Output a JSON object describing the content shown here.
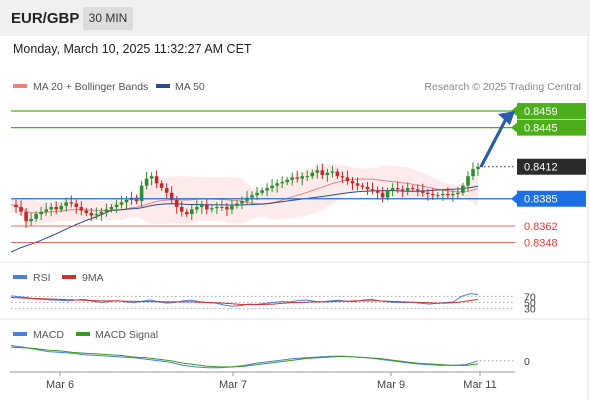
{
  "header": {
    "symbol": "EUR/GBP",
    "timeframe": "30 MIN",
    "datetime": "Monday, March 10, 2025 11:32:27 AM CET"
  },
  "colors": {
    "ma20": "#f08080",
    "ma50": "#2a4b8d",
    "resistance": "#4caf1a",
    "support": "#e53935",
    "pivot": "#1e6fe6",
    "candle_up": "#2e8b2e",
    "candle_down": "#c62828",
    "rsi": "#4a7fdc",
    "rsi_ma": "#d32f2f",
    "macd": "#4a7fdc",
    "macd_signal": "#3a9a1a",
    "arrow": "#2a5caa"
  },
  "chart_data": [
    {
      "type": "candlestick",
      "legend": [
        {
          "label": "MA 20 + Bollinger Bands",
          "color": "#f08080"
        },
        {
          "label": "MA 50",
          "color": "#2a4b8d"
        }
      ],
      "watermark": "Research © 2025 Trading Central",
      "x_ticks": [
        "Mar 6",
        "Mar 7",
        "Mar 9",
        "Mar 11"
      ],
      "current_price": "0.8412",
      "levels": [
        {
          "label": "0.8459",
          "value": 0.8459,
          "kind": "resistance"
        },
        {
          "label": "0.8445",
          "value": 0.8445,
          "kind": "resistance"
        },
        {
          "label": "0.8385",
          "value": 0.8385,
          "kind": "pivot"
        },
        {
          "label": "0.8362",
          "value": 0.8362,
          "kind": "support"
        },
        {
          "label": "0.8348",
          "value": 0.8348,
          "kind": "support"
        }
      ],
      "forecast_arrow_target": 0.8459,
      "ylim": [
        0.8335,
        0.847
      ],
      "close_series": [
        0.838,
        0.8378,
        0.8374,
        0.8366,
        0.8368,
        0.8372,
        0.8374,
        0.8376,
        0.8378,
        0.8376,
        0.8379,
        0.8382,
        0.8381,
        0.8378,
        0.8375,
        0.8373,
        0.8371,
        0.8372,
        0.8374,
        0.8376,
        0.8378,
        0.838,
        0.8382,
        0.8384,
        0.8386,
        0.8383,
        0.8396,
        0.8402,
        0.8404,
        0.8398,
        0.8394,
        0.839,
        0.8384,
        0.8378,
        0.8374,
        0.8372,
        0.8376,
        0.8378,
        0.838,
        0.8376,
        0.8377,
        0.8378,
        0.8378,
        0.8376,
        0.8379,
        0.8381,
        0.8383,
        0.8386,
        0.8388,
        0.839,
        0.8392,
        0.8394,
        0.8396,
        0.8398,
        0.8399,
        0.8401,
        0.8403,
        0.8402,
        0.8404,
        0.8404,
        0.8407,
        0.8409,
        0.8405,
        0.8407,
        0.8408,
        0.8404,
        0.8403,
        0.84,
        0.8398,
        0.8396,
        0.8395,
        0.8393,
        0.8392,
        0.839,
        0.8386,
        0.8392,
        0.8394,
        0.8393,
        0.8392,
        0.8394,
        0.8393,
        0.8392,
        0.839,
        0.8389,
        0.8388,
        0.8388,
        0.8389,
        0.8388,
        0.8389,
        0.839,
        0.8396,
        0.8404,
        0.841,
        0.8412
      ]
    },
    {
      "type": "line",
      "legend": [
        {
          "label": "RSI",
          "color": "#4a7fdc"
        },
        {
          "label": "9MA",
          "color": "#d32f2f"
        }
      ],
      "y_ticks": [
        "70",
        "50",
        "30"
      ],
      "ylim": [
        0,
        100
      ],
      "series": [
        {
          "name": "RSI",
          "values": [
            72,
            68,
            66,
            61,
            60,
            58,
            57,
            55,
            58,
            60,
            54,
            50,
            53,
            56,
            52,
            49,
            54,
            58,
            52,
            48,
            50,
            55,
            57,
            53,
            50,
            48,
            42,
            38,
            40,
            45,
            44,
            47,
            50,
            53,
            52,
            56,
            58,
            54,
            52,
            55,
            57,
            54,
            53,
            58,
            60,
            55,
            52,
            50,
            49,
            51,
            48,
            45,
            47,
            50,
            52,
            70,
            78,
            76
          ]
        },
        {
          "name": "9MA",
          "values": [
            66,
            65,
            64,
            63,
            62,
            61,
            60,
            59,
            58,
            57,
            56,
            55,
            55,
            55,
            54,
            54,
            53,
            53,
            53,
            52,
            52,
            52,
            52,
            51,
            50,
            49,
            48,
            46,
            44,
            43,
            43,
            44,
            45,
            47,
            49,
            50,
            51,
            52,
            52,
            53,
            54,
            54,
            55,
            55,
            55,
            55,
            54,
            53,
            52,
            51,
            50,
            49,
            48,
            48,
            49,
            52,
            56,
            60
          ]
        }
      ]
    },
    {
      "type": "line",
      "legend": [
        {
          "label": "MACD",
          "color": "#4a7fdc"
        },
        {
          "label": "MACD Signal",
          "color": "#3a9a1a"
        }
      ],
      "y_ticks": [
        "0"
      ],
      "ylim": [
        -0.0012,
        0.0022
      ],
      "series": [
        {
          "name": "MACD",
          "values": [
            0.002,
            0.0018,
            0.0015,
            0.0012,
            0.0011,
            0.001,
            0.0008,
            0.0007,
            0.0006,
            0.0005,
            0.0004,
            0.0002,
            0.0,
            -0.0002,
            -0.0006,
            -0.0008,
            -0.0009,
            -0.0009,
            -0.0008,
            -0.0006,
            -0.0003,
            -0.0001,
            0.0001,
            0.0003,
            0.0004,
            0.0005,
            0.0006,
            0.0006,
            0.0005,
            0.0004,
            0.0002,
            0.0,
            -0.0002,
            -0.0004,
            -0.0005,
            -0.0006,
            -0.0006,
            -0.0005,
            0.0
          ]
        },
        {
          "name": "MACD Signal",
          "values": [
            0.0018,
            0.0017,
            0.0016,
            0.0014,
            0.0013,
            0.0011,
            0.001,
            0.0009,
            0.0008,
            0.0007,
            0.0005,
            0.0004,
            0.0002,
            0.0,
            -0.0003,
            -0.0005,
            -0.0007,
            -0.0008,
            -0.0008,
            -0.0007,
            -0.0005,
            -0.0003,
            -0.0001,
            0.0001,
            0.0003,
            0.0004,
            0.0005,
            0.0006,
            0.0005,
            0.0004,
            0.0003,
            0.0001,
            -0.0001,
            -0.0003,
            -0.0004,
            -0.0005,
            -0.0006,
            -0.0006,
            -0.0004
          ]
        }
      ]
    }
  ]
}
